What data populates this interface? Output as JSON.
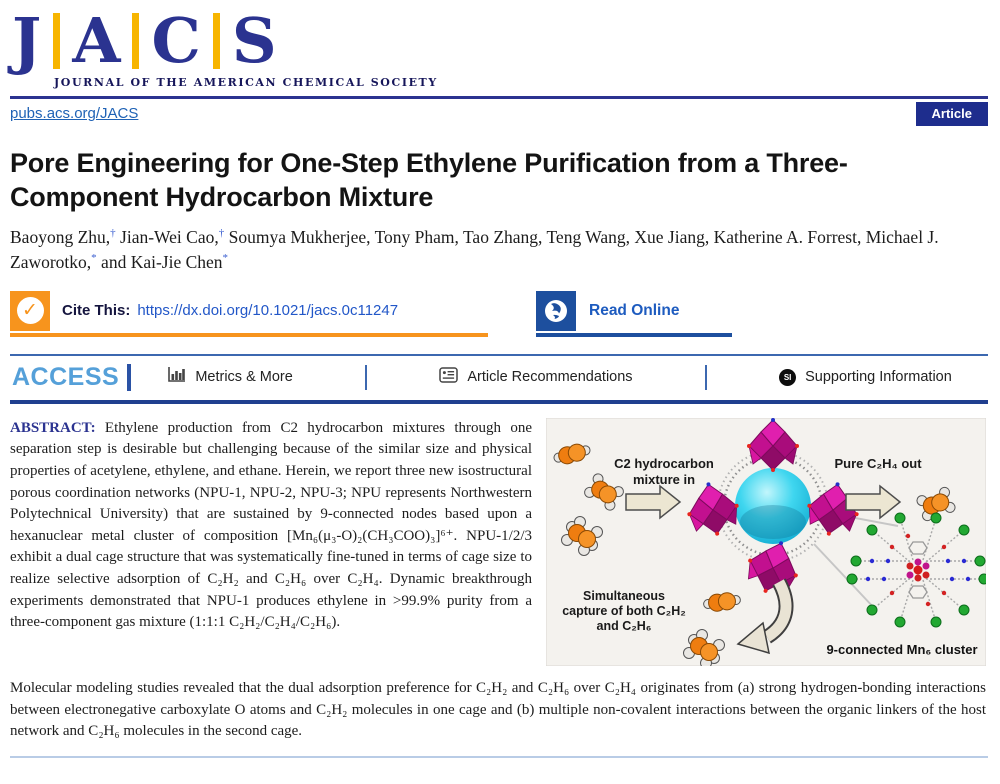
{
  "header": {
    "logo_letters": [
      "J",
      "A",
      "C",
      "S"
    ],
    "tagline": "JOURNAL OF THE AMERICAN CHEMICAL SOCIETY",
    "site_url": "pubs.acs.org/JACS",
    "badge": "Article"
  },
  "article": {
    "title": "Pore Engineering for One-Step Ethylene Purification from a Three-Component Hydrocarbon Mixture",
    "authors": [
      {
        "text": "Baoyong Zhu,",
        "marker": "†"
      },
      {
        "text": " Jian-Wei Cao,",
        "marker": "†"
      },
      {
        "text": " Soumya Mukherjee, Tony Pham, Tao Zhang, Teng Wang, Xue Jiang, Katherine A. Forrest, Michael J. Zaworotko,",
        "marker": "*"
      },
      {
        "text": " and Kai-Jie Chen",
        "marker": "*"
      }
    ]
  },
  "cite_bar": {
    "cite_label": "Cite This:",
    "doi": "https://dx.doi.org/10.1021/jacs.0c11247",
    "read_online": "Read Online"
  },
  "access": {
    "label": "ACCESS",
    "items": [
      {
        "label": "Metrics & More"
      },
      {
        "label": "Article Recommendations"
      },
      {
        "label": "Supporting Information",
        "icon_text": "SI"
      }
    ]
  },
  "abstract": {
    "label": "ABSTRACT:",
    "text": " Ethylene production from C2 hydrocarbon mixtures through one separation step is desirable but challenging because of the similar size and physical properties of acetylene, ethylene, and ethane. Herein, we report three new isostructural porous coordination networks (NPU-1, NPU-2, NPU-3; NPU represents Northwestern Polytechnical University) that are sustained by 9-connected nodes based upon a hexanuclear metal cluster of composition [Mn₆(μ₃-O)₂(CH₃COO)₃]⁶⁺. NPU-1/2/3 exhibit a dual cage structure that was systematically fine-tuned in terms of cage size to realize selective adsorption of C₂H₂ and C₂H₆ over C₂H₄. Dynamic breakthrough experiments demonstrated that NPU-1 produces ethylene in >99.9% purity from a three-component gas mixture (1:1:1 C₂H₂/C₂H₄/C₂H₆).",
    "continuation": "Molecular modeling studies revealed that the dual adsorption preference for C₂H₂ and C₂H₆ over C₂H₄ originates from (a) strong hydrogen-bonding interactions between electronegative carboxylate O atoms and C₂H₂ molecules in one cage and (b) multiple non-covalent interactions between the organic linkers of the host network and C₂H₆ molecules in the second cage."
  },
  "graphic": {
    "mixture_line1": "C2 hydrocarbon",
    "mixture_line2": "mixture in",
    "pure_out": "Pure C₂H₄ out",
    "capture_line1": "Simultaneous",
    "capture_line2": "capture of both C₂H₂",
    "capture_line3": "and C₂H₆",
    "cluster_label": "9-connected Mn₆ cluster"
  },
  "colors": {
    "brand_navy": "#2b3390",
    "accent_yellow": "#f7b500",
    "cite_orange": "#f7941d",
    "link_blue": "#2257c8",
    "read_blue": "#1d4f9e",
    "access_blue": "#55a0d9",
    "sphere_cyan": "#2ec9e8",
    "polyhedra_magenta": "#c2108f",
    "cluster_green": "#22a832"
  }
}
